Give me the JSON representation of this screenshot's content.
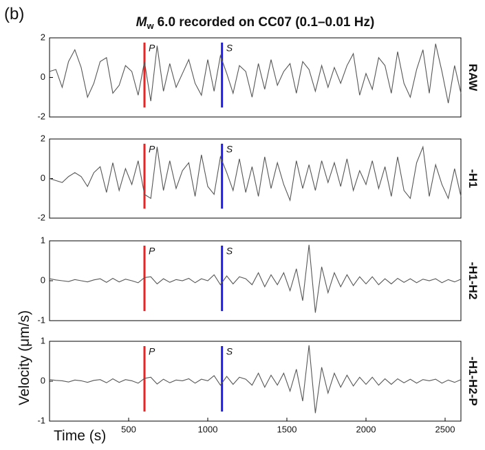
{
  "figure": {
    "panel_label": "(b)",
    "title": {
      "symbol": "M",
      "subscript": "w",
      "text": "6.0 recorded on CC07 (0.1–0.01 Hz)"
    },
    "ylabel": "Velocity (μm/s)",
    "xlabel": "Time (s)"
  },
  "chart_data": [
    {
      "type": "line",
      "label": "RAW",
      "color": "#555555",
      "xlim": [
        0,
        2600
      ],
      "ylim": [
        -2,
        2
      ],
      "yticks": [
        -2,
        0,
        2
      ],
      "markers": [
        {
          "label": "P",
          "x": 600,
          "color": "#ee2222"
        },
        {
          "label": "S",
          "x": 1090,
          "color": "#1a1aee"
        }
      ],
      "x": [
        0,
        40,
        80,
        120,
        160,
        200,
        240,
        280,
        320,
        360,
        400,
        440,
        480,
        520,
        560,
        600,
        640,
        680,
        720,
        760,
        800,
        840,
        880,
        920,
        960,
        1000,
        1040,
        1080,
        1120,
        1160,
        1200,
        1240,
        1280,
        1320,
        1360,
        1400,
        1440,
        1480,
        1520,
        1560,
        1600,
        1640,
        1680,
        1720,
        1760,
        1800,
        1840,
        1880,
        1920,
        1960,
        2000,
        2040,
        2080,
        2120,
        2160,
        2200,
        2240,
        2280,
        2320,
        2360,
        2400,
        2440,
        2480,
        2520,
        2560,
        2600
      ],
      "values": [
        0.3,
        0.4,
        -0.5,
        0.8,
        1.4,
        0.5,
        -1.0,
        -0.3,
        0.8,
        1.0,
        -0.8,
        -0.4,
        0.6,
        0.3,
        -0.9,
        0.8,
        -1.2,
        1.6,
        -0.7,
        0.7,
        -0.5,
        0.2,
        0.9,
        -0.3,
        -0.9,
        0.9,
        -0.7,
        1.1,
        0.2,
        -0.8,
        0.6,
        0.3,
        -1.0,
        0.7,
        -0.6,
        0.9,
        -0.4,
        0.3,
        0.7,
        -0.8,
        0.8,
        0.4,
        -0.7,
        0.6,
        -0.5,
        0.5,
        -0.3,
        0.6,
        1.2,
        -0.9,
        0.2,
        -0.6,
        1.0,
        0.6,
        -0.8,
        1.3,
        -0.3,
        -1.0,
        0.4,
        1.4,
        -0.8,
        1.7,
        0.3,
        -1.3,
        0.6,
        -0.8
      ]
    },
    {
      "type": "line",
      "label": "-H1",
      "color": "#555555",
      "xlim": [
        0,
        2600
      ],
      "ylim": [
        -2,
        2
      ],
      "yticks": [
        -2,
        0,
        2
      ],
      "markers": [
        {
          "label": "P",
          "x": 600,
          "color": "#ee2222"
        },
        {
          "label": "S",
          "x": 1090,
          "color": "#1a1aee"
        }
      ],
      "x": [
        0,
        40,
        80,
        120,
        160,
        200,
        240,
        280,
        320,
        360,
        400,
        440,
        480,
        520,
        560,
        600,
        640,
        680,
        720,
        760,
        800,
        840,
        880,
        920,
        960,
        1000,
        1040,
        1080,
        1120,
        1160,
        1200,
        1240,
        1280,
        1320,
        1360,
        1400,
        1440,
        1480,
        1520,
        1560,
        1600,
        1640,
        1680,
        1720,
        1760,
        1800,
        1840,
        1880,
        1920,
        1960,
        2000,
        2040,
        2080,
        2120,
        2160,
        2200,
        2240,
        2280,
        2320,
        2360,
        2400,
        2440,
        2480,
        2520,
        2560,
        2600
      ],
      "values": [
        0,
        -0.1,
        -0.2,
        0.1,
        0.3,
        0.1,
        -0.4,
        0.3,
        0.6,
        -0.7,
        0.8,
        -0.6,
        0.5,
        -0.3,
        0.9,
        -0.8,
        -1.0,
        1.6,
        -0.6,
        0.9,
        -0.5,
        0.4,
        0.8,
        -0.9,
        1.2,
        -0.4,
        -0.8,
        1.1,
        0.3,
        -0.6,
        1.0,
        -0.7,
        0.6,
        -0.9,
        1.1,
        -0.5,
        0.8,
        -0.3,
        -1.1,
        0.9,
        -0.5,
        0.7,
        -0.6,
        0.9,
        -0.2,
        0.8,
        -0.4,
        1.0,
        -0.6,
        0.4,
        -0.3,
        0.9,
        -0.5,
        0.6,
        -0.9,
        1.1,
        -0.6,
        -1.0,
        0.8,
        1.6,
        -0.9,
        0.7,
        -0.3,
        -1.0,
        0.5,
        -0.9
      ]
    },
    {
      "type": "line",
      "label": "-H1-H2",
      "color": "#555555",
      "xlim": [
        0,
        2600
      ],
      "ylim": [
        -1,
        1
      ],
      "yticks": [
        -1,
        0,
        1
      ],
      "markers": [
        {
          "label": "P",
          "x": 600,
          "color": "#ee2222"
        },
        {
          "label": "S",
          "x": 1090,
          "color": "#1a1aee"
        }
      ],
      "x": [
        0,
        40,
        80,
        120,
        160,
        200,
        240,
        280,
        320,
        360,
        400,
        440,
        480,
        520,
        560,
        600,
        640,
        680,
        720,
        760,
        800,
        840,
        880,
        920,
        960,
        1000,
        1040,
        1080,
        1120,
        1160,
        1200,
        1240,
        1280,
        1320,
        1360,
        1400,
        1440,
        1480,
        1520,
        1560,
        1600,
        1640,
        1680,
        1720,
        1760,
        1800,
        1840,
        1880,
        1920,
        1960,
        2000,
        2040,
        2080,
        2120,
        2160,
        2200,
        2240,
        2280,
        2320,
        2360,
        2400,
        2440,
        2480,
        2520,
        2560,
        2600
      ],
      "values": [
        0.05,
        0.02,
        0.0,
        -0.02,
        0.03,
        0.0,
        -0.03,
        0.02,
        0.05,
        -0.04,
        0.06,
        -0.03,
        0.04,
        0.0,
        -0.05,
        0.08,
        0.1,
        -0.08,
        0.05,
        -0.04,
        0.03,
        0.0,
        0.06,
        -0.05,
        0.05,
        0.0,
        0.15,
        -0.1,
        0.12,
        -0.08,
        0.1,
        0.05,
        -0.1,
        0.2,
        -0.15,
        0.15,
        -0.1,
        0.2,
        -0.25,
        0.3,
        -0.5,
        0.9,
        -0.8,
        0.35,
        -0.3,
        0.2,
        -0.15,
        0.15,
        -0.12,
        0.1,
        -0.08,
        0.1,
        -0.1,
        0.05,
        -0.08,
        0.06,
        -0.04,
        0.05,
        -0.05,
        0.04,
        0.0,
        0.05,
        -0.05,
        0.03,
        -0.03,
        0.04
      ]
    },
    {
      "type": "line",
      "label": "-H1-H2-P",
      "color": "#555555",
      "xlim": [
        0,
        2600
      ],
      "ylim": [
        -1,
        1
      ],
      "yticks": [
        -1,
        0,
        1
      ],
      "xticks": [
        500,
        1000,
        1500,
        2000,
        2500
      ],
      "markers": [
        {
          "label": "P",
          "x": 600,
          "color": "#ee2222"
        },
        {
          "label": "S",
          "x": 1090,
          "color": "#1a1aee"
        }
      ],
      "x": [
        0,
        40,
        80,
        120,
        160,
        200,
        240,
        280,
        320,
        360,
        400,
        440,
        480,
        520,
        560,
        600,
        640,
        680,
        720,
        760,
        800,
        840,
        880,
        920,
        960,
        1000,
        1040,
        1080,
        1120,
        1160,
        1200,
        1240,
        1280,
        1320,
        1360,
        1400,
        1440,
        1480,
        1520,
        1560,
        1600,
        1640,
        1680,
        1720,
        1760,
        1800,
        1840,
        1880,
        1920,
        1960,
        2000,
        2040,
        2080,
        2120,
        2160,
        2200,
        2240,
        2280,
        2320,
        2360,
        2400,
        2440,
        2480,
        2520,
        2560,
        2600
      ],
      "values": [
        0.04,
        0.02,
        0.01,
        -0.02,
        0.03,
        0.01,
        -0.03,
        0.02,
        0.04,
        -0.04,
        0.06,
        -0.03,
        0.04,
        0.01,
        -0.05,
        0.07,
        0.1,
        -0.07,
        0.05,
        -0.04,
        0.03,
        0.01,
        0.06,
        -0.05,
        0.05,
        0.01,
        0.14,
        -0.1,
        0.12,
        -0.08,
        0.1,
        0.05,
        -0.1,
        0.2,
        -0.15,
        0.15,
        -0.1,
        0.2,
        -0.25,
        0.3,
        -0.5,
        0.9,
        -0.8,
        0.35,
        -0.3,
        0.2,
        -0.15,
        0.15,
        -0.12,
        0.1,
        -0.08,
        0.1,
        -0.1,
        0.06,
        -0.08,
        0.06,
        -0.04,
        0.05,
        -0.05,
        0.04,
        0.01,
        0.05,
        -0.05,
        0.03,
        -0.03,
        0.04
      ]
    }
  ]
}
